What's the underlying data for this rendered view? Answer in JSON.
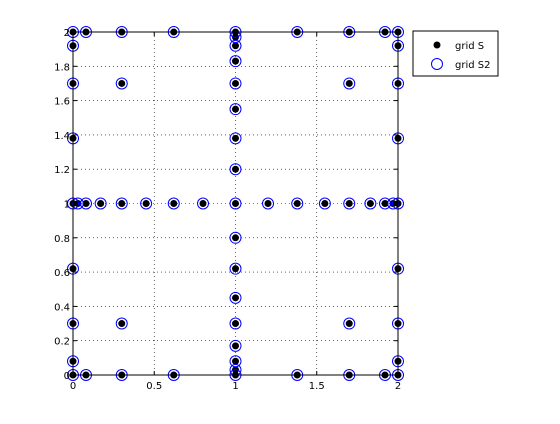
{
  "chart_data": {
    "type": "scatter",
    "title": "",
    "xlabel": "",
    "ylabel": "",
    "xlim": [
      0,
      2
    ],
    "ylim": [
      0,
      2
    ],
    "grid": true,
    "legend_position": "top-right outside",
    "x_ticks": [
      "0",
      "0.5",
      "1",
      "1.5",
      "2"
    ],
    "y_ticks": [
      "0",
      "0.2",
      "0.4",
      "0.6",
      "0.8",
      "1",
      "1.2",
      "1.4",
      "1.6",
      "1.8",
      "2"
    ],
    "series": [
      {
        "name": "grid S",
        "marker": "filled-dot",
        "color": "#000000",
        "points": [
          [
            0,
            0
          ],
          [
            0.08,
            0
          ],
          [
            0.3,
            0
          ],
          [
            0.62,
            0
          ],
          [
            1,
            0
          ],
          [
            1.38,
            0
          ],
          [
            1.7,
            0
          ],
          [
            1.92,
            0
          ],
          [
            2,
            0
          ],
          [
            0,
            0.08
          ],
          [
            0,
            0.3
          ],
          [
            0,
            0.62
          ],
          [
            0,
            1
          ],
          [
            0,
            1.38
          ],
          [
            0,
            1.7
          ],
          [
            0,
            1.92
          ],
          [
            0,
            2
          ],
          [
            2,
            0.08
          ],
          [
            2,
            0.3
          ],
          [
            2,
            0.62
          ],
          [
            2,
            1
          ],
          [
            2,
            1.38
          ],
          [
            2,
            1.7
          ],
          [
            2,
            1.92
          ],
          [
            2,
            2
          ],
          [
            0.08,
            2
          ],
          [
            0.3,
            2
          ],
          [
            0.62,
            2
          ],
          [
            1,
            2
          ],
          [
            1.38,
            2
          ],
          [
            1.7,
            2
          ],
          [
            1.92,
            2
          ],
          [
            1,
            0.03
          ],
          [
            1,
            0.08
          ],
          [
            1,
            0.17
          ],
          [
            1,
            0.3
          ],
          [
            1,
            0.45
          ],
          [
            1,
            0.62
          ],
          [
            1,
            0.8
          ],
          [
            1,
            1.2
          ],
          [
            1,
            1.38
          ],
          [
            1,
            1.55
          ],
          [
            1,
            1.7
          ],
          [
            1,
            1.83
          ],
          [
            1,
            1.92
          ],
          [
            1,
            1.97
          ],
          [
            0.03,
            1
          ],
          [
            0.08,
            1
          ],
          [
            0.17,
            1
          ],
          [
            0.3,
            1
          ],
          [
            0.45,
            1
          ],
          [
            0.62,
            1
          ],
          [
            0.8,
            1
          ],
          [
            1,
            1
          ],
          [
            1.2,
            1
          ],
          [
            1.38,
            1
          ],
          [
            1.55,
            1
          ],
          [
            1.7,
            1
          ],
          [
            1.83,
            1
          ],
          [
            1.92,
            1
          ],
          [
            1.97,
            1
          ],
          [
            0.3,
            0.3
          ],
          [
            1.7,
            0.3
          ],
          [
            0.3,
            1.7
          ],
          [
            1.7,
            1.7
          ]
        ]
      },
      {
        "name": "grid S2",
        "marker": "open-circle",
        "color": "#0000ff",
        "points": [
          [
            0,
            0
          ],
          [
            0.08,
            0
          ],
          [
            0.3,
            0
          ],
          [
            0.62,
            0
          ],
          [
            1,
            0
          ],
          [
            1.38,
            0
          ],
          [
            1.7,
            0
          ],
          [
            1.92,
            0
          ],
          [
            2,
            0
          ],
          [
            0,
            0.08
          ],
          [
            0,
            0.3
          ],
          [
            0,
            0.62
          ],
          [
            0,
            1
          ],
          [
            0,
            1.38
          ],
          [
            0,
            1.7
          ],
          [
            0,
            1.92
          ],
          [
            0,
            2
          ],
          [
            2,
            0.08
          ],
          [
            2,
            0.3
          ],
          [
            2,
            0.62
          ],
          [
            2,
            1
          ],
          [
            2,
            1.38
          ],
          [
            2,
            1.7
          ],
          [
            2,
            1.92
          ],
          [
            2,
            2
          ],
          [
            0.08,
            2
          ],
          [
            0.3,
            2
          ],
          [
            0.62,
            2
          ],
          [
            1,
            2
          ],
          [
            1.38,
            2
          ],
          [
            1.7,
            2
          ],
          [
            1.92,
            2
          ],
          [
            1,
            0.03
          ],
          [
            1,
            0.08
          ],
          [
            1,
            0.17
          ],
          [
            1,
            0.3
          ],
          [
            1,
            0.45
          ],
          [
            1,
            0.62
          ],
          [
            1,
            0.8
          ],
          [
            1,
            1.2
          ],
          [
            1,
            1.38
          ],
          [
            1,
            1.55
          ],
          [
            1,
            1.7
          ],
          [
            1,
            1.83
          ],
          [
            1,
            1.92
          ],
          [
            1,
            1.97
          ],
          [
            0.03,
            1
          ],
          [
            0.08,
            1
          ],
          [
            0.17,
            1
          ],
          [
            0.3,
            1
          ],
          [
            0.45,
            1
          ],
          [
            0.62,
            1
          ],
          [
            0.8,
            1
          ],
          [
            1,
            1
          ],
          [
            1.2,
            1
          ],
          [
            1.38,
            1
          ],
          [
            1.55,
            1
          ],
          [
            1.7,
            1
          ],
          [
            1.83,
            1
          ],
          [
            1.92,
            1
          ],
          [
            1.97,
            1
          ],
          [
            0.3,
            0.3
          ],
          [
            1.7,
            0.3
          ],
          [
            0.3,
            1.7
          ],
          [
            1.7,
            1.7
          ]
        ]
      }
    ]
  }
}
